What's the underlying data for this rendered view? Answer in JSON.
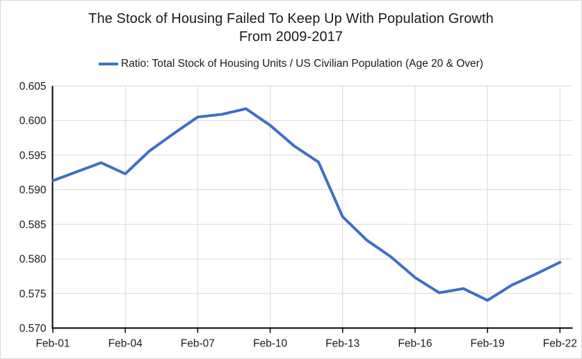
{
  "chart_data": {
    "type": "line",
    "title_line1": "The Stock of Housing Failed To Keep Up With Population Growth",
    "title_line2": "From 2009-2017",
    "legend": "Ratio: Total Stock of Housing Units / US Civilian Population (Age 20 & Over)",
    "legend_position": "top-center",
    "categories": [
      "Feb-01",
      "Feb-02",
      "Feb-03",
      "Feb-04",
      "Feb-05",
      "Feb-06",
      "Feb-07",
      "Feb-08",
      "Feb-09",
      "Feb-10",
      "Feb-11",
      "Feb-12",
      "Feb-13",
      "Feb-14",
      "Feb-15",
      "Feb-16",
      "Feb-17",
      "Feb-18",
      "Feb-19",
      "Feb-20",
      "Feb-21",
      "Feb-22"
    ],
    "values": [
      0.5913,
      0.5926,
      0.5939,
      0.5923,
      0.5956,
      0.5981,
      0.6005,
      0.6009,
      0.6017,
      0.5993,
      0.5963,
      0.594,
      0.5861,
      0.5827,
      0.5803,
      0.5773,
      0.5751,
      0.5757,
      0.574,
      0.5762,
      0.5778,
      0.5795
    ],
    "xlabel": "",
    "ylabel": "",
    "ylim": [
      0.57,
      0.605
    ],
    "ytick_step": 0.005,
    "ytick_decimals": 3,
    "xtick_every": 3,
    "grid": true,
    "colors": {
      "line": "#3E70C4",
      "gridline": "#D9D9D9",
      "axis": "#000000",
      "text": "#1A1A1A",
      "frame_border": "#D9D9D9"
    }
  }
}
